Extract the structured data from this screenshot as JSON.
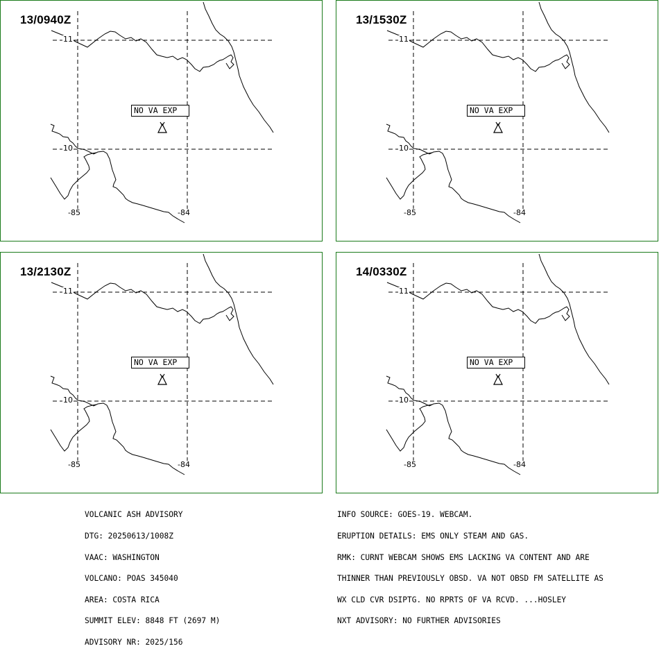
{
  "panels": [
    {
      "time": "13/0940Z",
      "status": "NO VA EXP"
    },
    {
      "time": "13/1530Z",
      "status": "NO VA EXP"
    },
    {
      "time": "13/2130Z",
      "status": "NO VA EXP"
    },
    {
      "time": "14/0330Z",
      "status": "NO VA EXP"
    }
  ],
  "grid_labels": {
    "lat_north": "11",
    "lat_south": "10",
    "lon_west": "-85",
    "lon_east": "-84"
  },
  "advisory_left": [
    "VOLCANIC ASH ADVISORY",
    "DTG: 20250613/1008Z",
    "VAAC: WASHINGTON",
    "VOLCANO: POAS 345040",
    "AREA: COSTA RICA",
    "SUMMIT ELEV: 8848 FT (2697 M)",
    "ADVISORY NR: 2025/156"
  ],
  "advisory_right": [
    "INFO SOURCE: GOES-19. WEBCAM.",
    "ERUPTION DETAILS: EMS ONLY STEAM AND GAS.",
    "RMK: CURNT WEBCAM SHOWS EMS LACKING VA CONTENT AND ARE",
    "THINNER THAN PREVIOUSLY OBSD. VA NOT OBSD FM SATELLITE AS",
    "WX CLD CVR DSIPTG. NO RPRTS OF VA RCVD. ...HOSLEY",
    "NXT ADVISORY: NO FURTHER ADVISORIES"
  ],
  "colors": {
    "panel_border": "#1a7a1a",
    "coast": "#000000",
    "grid": "#000000"
  },
  "icons": {
    "volcano": "volcano-icon"
  }
}
